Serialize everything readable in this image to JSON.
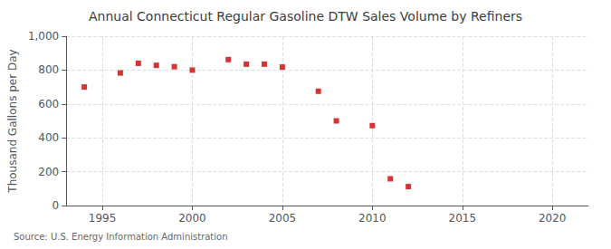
{
  "chart_data": {
    "type": "scatter",
    "title": "Annual Connecticut Regular Gasoline DTW Sales Volume by Refiners",
    "ylabel": "Thousand Gallons per Day",
    "source": "Source: U.S. Energy Information Administration",
    "x": [
      1994,
      1996,
      1997,
      1998,
      1999,
      2000,
      2002,
      2003,
      2004,
      2005,
      2007,
      2008,
      2010,
      2011,
      2012
    ],
    "values": [
      700,
      783,
      840,
      828,
      820,
      800,
      862,
      835,
      835,
      818,
      675,
      500,
      472,
      158,
      112
    ],
    "color": "#cc0000",
    "marker": "square",
    "xlim": [
      1993,
      2022
    ],
    "ylim": [
      0,
      1000
    ],
    "xticks": [
      1995,
      2000,
      2005,
      2010,
      2015,
      2020
    ],
    "yticks": [
      0,
      200,
      400,
      600,
      800,
      {
        "value": 1000,
        "label": "1,000"
      }
    ],
    "grid": true
  }
}
